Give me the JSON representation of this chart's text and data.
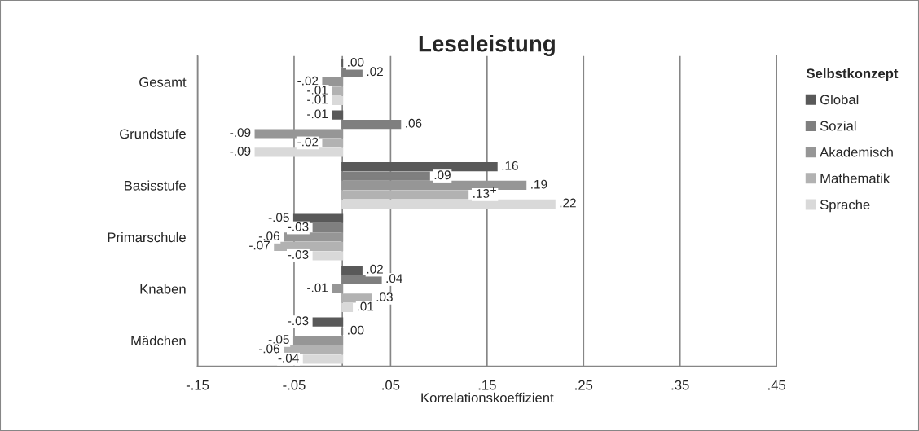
{
  "chart_data": {
    "type": "bar",
    "orientation": "horizontal",
    "title": "Leseleistung",
    "xlabel": "Korrelationskoeffizient",
    "legend_title": "Selbstkonzept",
    "legend": "right",
    "grid": "x",
    "categories": [
      "Gesamt",
      "Grundstufe",
      "Basisstufe",
      "Primarschule",
      "Knaben",
      "Mädchen"
    ],
    "xlim": [
      -0.15,
      0.45
    ],
    "xticks": [
      {
        "value": -0.15,
        "label": "-.15"
      },
      {
        "value": -0.05,
        "label": "-.05"
      },
      {
        "value": 0.05,
        "label": ".05"
      },
      {
        "value": 0.15,
        "label": ".15"
      },
      {
        "value": 0.25,
        "label": ".25"
      },
      {
        "value": 0.35,
        "label": ".35"
      },
      {
        "value": 0.45,
        "label": ".45"
      }
    ],
    "series": [
      {
        "name": "Global",
        "color": "#595959",
        "values": [
          0.0,
          -0.01,
          0.16,
          -0.05,
          0.02,
          -0.03
        ],
        "value_labels": [
          ".00",
          "-.01",
          ".16",
          "-.05",
          ".02",
          "-.03"
        ]
      },
      {
        "name": "Sozial",
        "color": "#7f7f7f",
        "values": [
          0.02,
          0.06,
          0.09,
          -0.03,
          0.04,
          0.0
        ],
        "value_labels": [
          ".02",
          ".06",
          ".09",
          "-.03",
          ".04",
          ".00"
        ]
      },
      {
        "name": "Akademisch",
        "color": "#969696",
        "values": [
          -0.02,
          -0.09,
          0.19,
          -0.06,
          -0.01,
          -0.05
        ],
        "value_labels": [
          "-.02",
          "-.09",
          ".19",
          "-.06",
          "-.01",
          "-.05"
        ]
      },
      {
        "name": "Mathematik",
        "color": "#b2b2b2",
        "values": [
          -0.01,
          -0.02,
          0.13,
          -0.07,
          0.03,
          -0.06
        ],
        "value_labels": [
          "-.01",
          "-.02",
          ".13$^{+}$",
          "-.07",
          ".03",
          "-.06"
        ]
      },
      {
        "name": "Sprache",
        "color": "#d9d9d9",
        "values": [
          -0.01,
          -0.09,
          0.22,
          -0.03,
          0.01,
          -0.04
        ],
        "value_labels": [
          "-.01",
          "-.09",
          ".22",
          "-.03",
          ".01",
          "-.04"
        ]
      }
    ]
  }
}
